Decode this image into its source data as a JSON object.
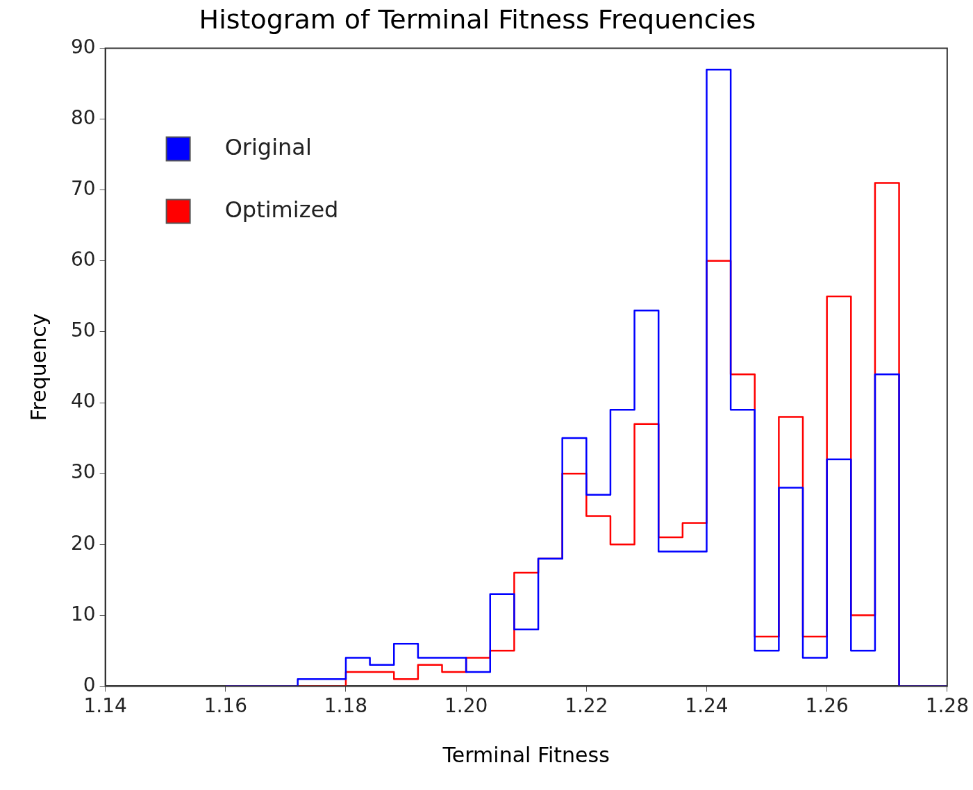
{
  "chart_data": {
    "type": "histogram",
    "title": "Histogram of Terminal Fitness Frequencies",
    "xlabel": "Terminal Fitness",
    "ylabel": "Frequency",
    "bins": [
      1.16,
      1.164,
      1.168,
      1.172,
      1.176,
      1.18,
      1.184,
      1.188,
      1.192,
      1.196,
      1.2,
      1.204,
      1.208,
      1.212,
      1.216,
      1.22,
      1.224,
      1.228,
      1.232,
      1.236,
      1.24,
      1.244,
      1.248,
      1.252,
      1.256,
      1.26,
      1.264,
      1.268,
      1.272,
      1.276,
      1.28
    ],
    "series": [
      {
        "name": "Original",
        "color": "#0000ff",
        "values": [
          0,
          0,
          0,
          1,
          1,
          4,
          3,
          6,
          4,
          4,
          2,
          13,
          8,
          18,
          35,
          27,
          39,
          53,
          19,
          19,
          87,
          39,
          5,
          28,
          4,
          32,
          5,
          44,
          0,
          0
        ]
      },
      {
        "name": "Optimized",
        "color": "#ff0000",
        "values": [
          0,
          0,
          0,
          0,
          0,
          2,
          2,
          1,
          3,
          2,
          4,
          5,
          16,
          18,
          30,
          24,
          20,
          37,
          21,
          23,
          60,
          44,
          7,
          38,
          7,
          55,
          10,
          71,
          0,
          0
        ]
      }
    ],
    "xlim": [
      1.14,
      1.28
    ],
    "xticks": [
      {
        "value": 1.14,
        "label": "1.14"
      },
      {
        "value": 1.16,
        "label": "1.16"
      },
      {
        "value": 1.18,
        "label": "1.18"
      },
      {
        "value": 1.2,
        "label": "1.20"
      },
      {
        "value": 1.22,
        "label": "1.22"
      },
      {
        "value": 1.24,
        "label": "1.24"
      },
      {
        "value": 1.26,
        "label": "1.26"
      },
      {
        "value": 1.28,
        "label": "1.28"
      }
    ],
    "ylim": [
      0,
      90
    ],
    "yticks": [
      0,
      10,
      20,
      30,
      40,
      50,
      60,
      70,
      80,
      90
    ],
    "grid": false,
    "legend": "top left"
  }
}
